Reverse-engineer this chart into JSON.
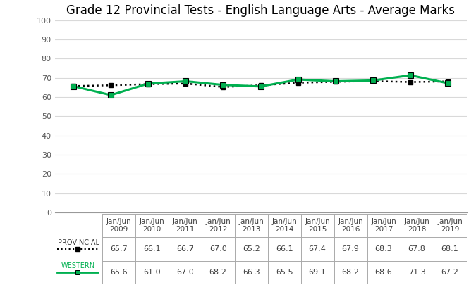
{
  "title": "Grade 12 Provincial Tests - English Language Arts - Average Marks",
  "x_labels": [
    "Jan/Jun\n2009",
    "Jan/Jun\n2010",
    "Jan/Jun\n2011",
    "Jan/Jun\n2012",
    "Jan/Jun\n2013",
    "Jan/Jun\n2014",
    "Jan/Jun\n2015",
    "Jan/Jun\n2016",
    "Jan/Jun\n2017",
    "Jan/Jun\n2018",
    "Jan/Jun\n2019"
  ],
  "provincial": [
    65.7,
    66.1,
    66.7,
    67.0,
    65.2,
    66.1,
    67.4,
    67.9,
    68.3,
    67.8,
    68.1
  ],
  "western": [
    65.6,
    61.0,
    67.0,
    68.2,
    66.3,
    65.5,
    69.1,
    68.2,
    68.6,
    71.3,
    67.2
  ],
  "provincial_label": "PROVINCIAL",
  "western_label": "WESTERN",
  "provincial_color": "#000000",
  "western_color": "#00b050",
  "ylim": [
    0,
    100
  ],
  "yticks": [
    0,
    10,
    20,
    30,
    40,
    50,
    60,
    70,
    80,
    90,
    100
  ],
  "grid_color": "#d9d9d9",
  "title_fontsize": 12,
  "tick_fontsize": 8,
  "table_fontsize": 8,
  "legend_fontsize": 8
}
